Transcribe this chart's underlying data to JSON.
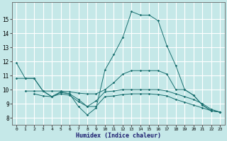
{
  "xlabel": "Humidex (Indice chaleur)",
  "xlim": [
    -0.5,
    23.5
  ],
  "ylim": [
    7.5,
    16.2
  ],
  "yticks": [
    8,
    9,
    10,
    11,
    12,
    13,
    14,
    15
  ],
  "xticks": [
    0,
    1,
    2,
    3,
    4,
    5,
    6,
    7,
    8,
    9,
    10,
    11,
    12,
    13,
    14,
    15,
    16,
    17,
    18,
    19,
    20,
    21,
    22,
    23
  ],
  "bg_color": "#c5e8e8",
  "grid_color": "#ffffff",
  "line_color": "#1a7070",
  "lines": [
    {
      "x": [
        0,
        1,
        2,
        3,
        4,
        5,
        6,
        7,
        8,
        9,
        10,
        11,
        12,
        13,
        14,
        15,
        16,
        17,
        18,
        19,
        20,
        21,
        22,
        23
      ],
      "y": [
        11.9,
        10.8,
        10.8,
        9.9,
        9.5,
        9.8,
        9.7,
        8.8,
        8.2,
        8.7,
        11.4,
        12.5,
        13.7,
        15.55,
        15.3,
        15.3,
        14.9,
        13.1,
        11.7,
        10.0,
        9.6,
        8.9,
        8.5,
        8.4
      ]
    },
    {
      "x": [
        0,
        1,
        2,
        3,
        4,
        5,
        6,
        7,
        8,
        9,
        10,
        11,
        12,
        13,
        14,
        15,
        16,
        17,
        18,
        19,
        20,
        21,
        22,
        23
      ],
      "y": [
        10.8,
        10.8,
        10.8,
        9.9,
        9.9,
        9.9,
        9.85,
        9.75,
        9.7,
        9.7,
        10.0,
        10.5,
        11.1,
        11.35,
        11.35,
        11.35,
        11.35,
        11.1,
        10.0,
        10.0,
        9.6,
        8.9,
        8.5,
        8.4
      ]
    },
    {
      "x": [
        1,
        2,
        3,
        4,
        5,
        6,
        7,
        8,
        9,
        10,
        11,
        12,
        13,
        14,
        15,
        16,
        17,
        18,
        19,
        20,
        21,
        22,
        23
      ],
      "y": [
        9.9,
        9.9,
        9.9,
        9.5,
        9.85,
        9.7,
        9.3,
        8.8,
        9.2,
        9.85,
        9.9,
        10.0,
        10.0,
        10.0,
        10.0,
        10.0,
        9.9,
        9.7,
        9.5,
        9.3,
        9.0,
        8.6,
        8.4
      ]
    },
    {
      "x": [
        2,
        3,
        4,
        5,
        6,
        7,
        8,
        9,
        10,
        11,
        12,
        13,
        14,
        15,
        16,
        17,
        18,
        19,
        20,
        21,
        22,
        23
      ],
      "y": [
        9.7,
        9.55,
        9.5,
        9.7,
        9.6,
        9.15,
        8.8,
        8.8,
        9.5,
        9.55,
        9.65,
        9.7,
        9.7,
        9.7,
        9.65,
        9.55,
        9.3,
        9.1,
        8.9,
        8.7,
        8.5,
        8.4
      ]
    }
  ]
}
